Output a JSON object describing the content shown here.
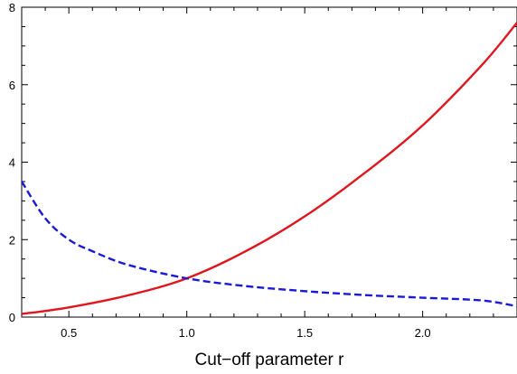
{
  "chart_data": {
    "type": "line",
    "title": "",
    "xlabel": "Cut−off parameter r",
    "ylabel": "",
    "xlim": [
      0.3,
      2.4
    ],
    "ylim": [
      0,
      8
    ],
    "x_ticks": [
      "0.5",
      "1.0",
      "1.5",
      "2.0"
    ],
    "x_tick_values": [
      0.5,
      1.0,
      1.5,
      2.0
    ],
    "y_ticks": [
      "0",
      "2",
      "4",
      "6",
      "8"
    ],
    "y_tick_values": [
      0,
      2,
      4,
      6,
      8
    ],
    "frame": true,
    "grid": false,
    "legend": "none",
    "series": [
      {
        "style": "solid",
        "color": "#e0161e",
        "x": [
          0.3,
          0.5,
          0.75,
          1.0,
          1.25,
          1.5,
          1.75,
          2.0,
          2.25,
          2.4
        ],
        "y": [
          0.08,
          0.25,
          0.56,
          1.0,
          1.7,
          2.6,
          3.7,
          4.95,
          6.5,
          7.6
        ]
      },
      {
        "style": "dashed",
        "color": "#1a1ad6",
        "x": [
          0.3,
          0.4,
          0.5,
          0.6,
          0.75,
          1.0,
          1.25,
          1.5,
          1.75,
          2.0,
          2.25,
          2.4
        ],
        "y": [
          3.5,
          2.55,
          2.0,
          1.7,
          1.35,
          1.0,
          0.8,
          0.67,
          0.57,
          0.5,
          0.43,
          0.28
        ]
      }
    ]
  }
}
